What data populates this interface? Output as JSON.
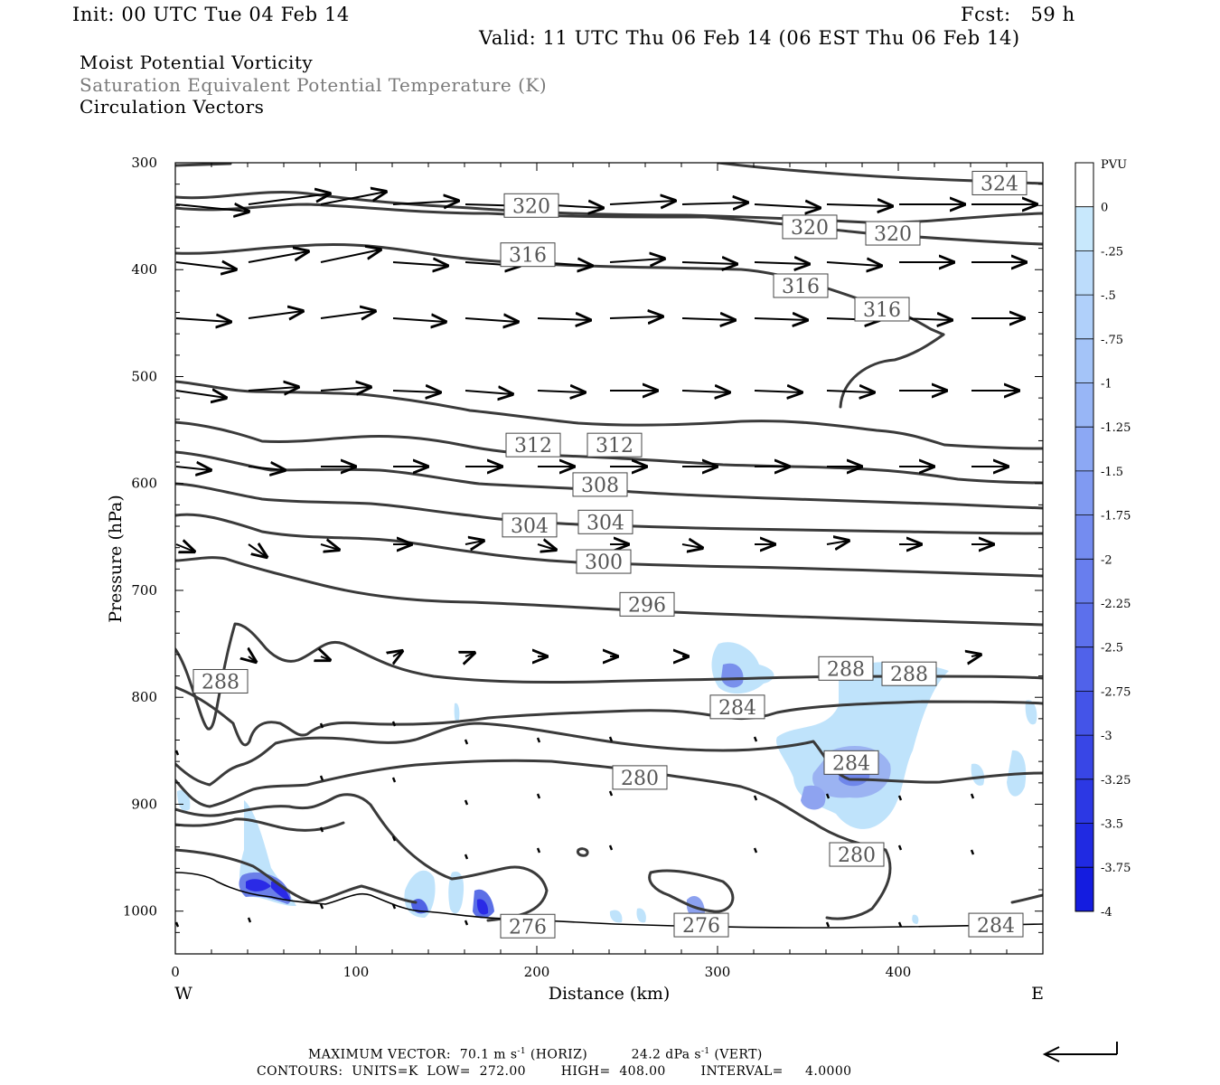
{
  "header": {
    "init": "Init: 00 UTC Tue 04 Feb 14",
    "fcst": "Fcst:   59 h",
    "valid": "Valid: 11 UTC Thu 06 Feb 14 (06 EST Thu 06 Feb 14)",
    "field1": "Moist Potential Vorticity",
    "field2": "Saturation Equivalent Potential Temperature (K)",
    "field3": "Circulation Vectors"
  },
  "footer": {
    "max_vector_label": "MAXIMUM VECTOR:",
    "max_vector_horiz": "70.1 m s",
    "horiz_unit_sup": "-1",
    "horiz_tag": "(HORIZ)",
    "max_vector_vert": "24.2 dPa s",
    "vert_unit_sup": "-1",
    "vert_tag": "(VERT)",
    "contours_line": "CONTOURS:  UNITS=K  LOW=  272.00        HIGH=  408.00        INTERVAL=     4.0000"
  },
  "colors": {
    "contour": "#3a3a3a",
    "pv_light": "#bfe3fb",
    "pv_mid": "#8fa6f0",
    "pv_dark": "#2a2ae6"
  },
  "chart_data": {
    "type": "cross-section",
    "title": "",
    "xlabel": "Distance (km)",
    "ylabel": "Pressure (hPa)",
    "xlim": [
      0,
      480
    ],
    "ylim": [
      1040,
      300
    ],
    "x_ticks": [
      0,
      100,
      200,
      300,
      400
    ],
    "y_ticks": [
      300,
      400,
      500,
      600,
      700,
      800,
      900,
      1000
    ],
    "x_end_labels": {
      "left": "W",
      "right": "E"
    },
    "colorbar": {
      "unit": "PVU",
      "labels": [
        "0",
        "-.25",
        "-.5",
        "-.75",
        "-1",
        "-1.25",
        "-1.5",
        "-1.75",
        "-2",
        "-2.25",
        "-2.5",
        "-2.75",
        "-3",
        "-3.25",
        "-3.5",
        "-3.75",
        "-4"
      ],
      "colors": [
        "#ffffff",
        "#c8e8fc",
        "#bcdcfb",
        "#b0d0fa",
        "#a4c4f8",
        "#98b6f6",
        "#8ca8f4",
        "#809af2",
        "#748cf0",
        "#687eee",
        "#5c70ec",
        "#5062ea",
        "#4454e8",
        "#3846e6",
        "#2c38e4",
        "#202ae2",
        "#141ce0"
      ]
    },
    "contour_labels": [
      {
        "text": "320",
        "x": 197,
        "p": 340
      },
      {
        "text": "320",
        "x": 351,
        "p": 360
      },
      {
        "text": "320",
        "x": 397,
        "p": 366
      },
      {
        "text": "324",
        "x": 456,
        "p": 319
      },
      {
        "text": "316",
        "x": 195,
        "p": 386
      },
      {
        "text": "316",
        "x": 346,
        "p": 415
      },
      {
        "text": "316",
        "x": 391,
        "p": 437
      },
      {
        "text": "312",
        "x": 198,
        "p": 564
      },
      {
        "text": "312",
        "x": 243,
        "p": 564
      },
      {
        "text": "308",
        "x": 235,
        "p": 601
      },
      {
        "text": "304",
        "x": 196,
        "p": 639
      },
      {
        "text": "304",
        "x": 238,
        "p": 636
      },
      {
        "text": "300",
        "x": 237,
        "p": 673
      },
      {
        "text": "296",
        "x": 261,
        "p": 713
      },
      {
        "text": "288",
        "x": 25,
        "p": 785
      },
      {
        "text": "288",
        "x": 371,
        "p": 773
      },
      {
        "text": "288",
        "x": 406,
        "p": 778
      },
      {
        "text": "284",
        "x": 311,
        "p": 809
      },
      {
        "text": "284",
        "x": 374,
        "p": 861
      },
      {
        "text": "284",
        "x": 454,
        "p": 1013
      },
      {
        "text": "280",
        "x": 257,
        "p": 875
      },
      {
        "text": "280",
        "x": 377,
        "p": 947
      },
      {
        "text": "276",
        "x": 195,
        "p": 1014
      },
      {
        "text": "276",
        "x": 291,
        "p": 1013
      }
    ]
  }
}
